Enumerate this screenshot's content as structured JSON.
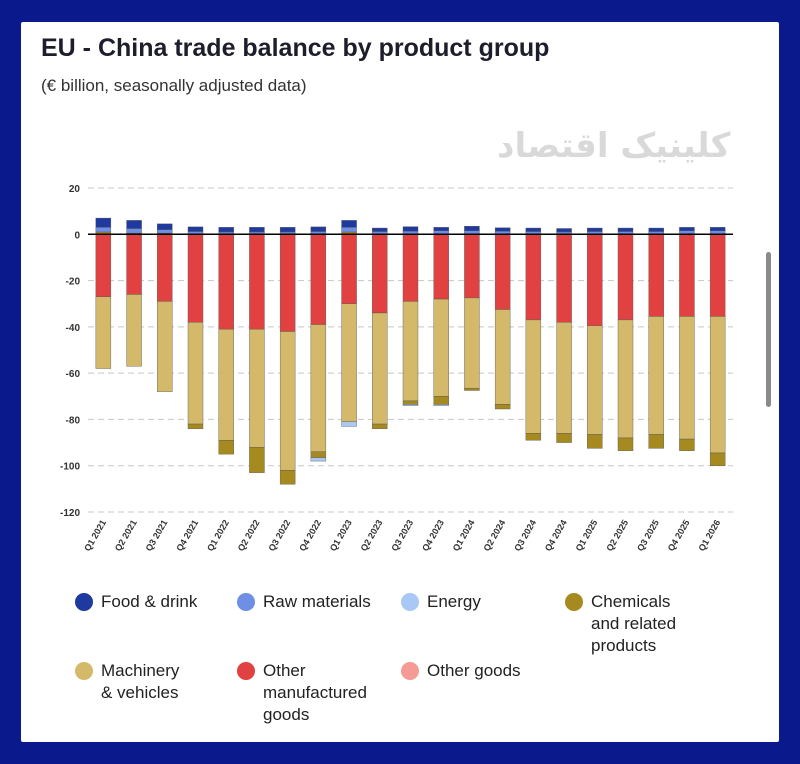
{
  "chart_data": {
    "type": "bar",
    "stacked": true,
    "title": "EU - China trade balance by product group",
    "subtitle": "(€ billion, seasonally adjusted data)",
    "ylim": [
      -120,
      20
    ],
    "yticks": [
      20,
      0,
      -20,
      -40,
      -60,
      -80,
      -100,
      -120
    ],
    "grid": true,
    "legend_position": "bottom",
    "categories": [
      "Q1 2021",
      "Q2 2021",
      "Q3 2021",
      "Q4 2021",
      "Q1 2022",
      "Q2 2022",
      "Q3 2022",
      "Q4 2022",
      "Q1 2023",
      "Q2 2023",
      "Q3 2023",
      "Q4 2023",
      "Q1 2024",
      "Q2 2024",
      "Q3 2024",
      "Q4 2024",
      "Q1 2025",
      "Q2 2025",
      "Q3 2025",
      "Q4 2025",
      "Q1 2026"
    ],
    "series": [
      {
        "name": "Food & drink",
        "color": "#1f3a9e",
        "values": [
          4,
          3.5,
          2.5,
          2,
          2,
          2,
          2,
          2,
          3,
          1.5,
          2,
          1.5,
          2,
          1.5,
          1.5,
          1.5,
          1.5,
          1.5,
          1.5,
          1.5,
          1.5
        ]
      },
      {
        "name": "Raw materials",
        "color": "#6f8fe6",
        "values": [
          2,
          2,
          1.5,
          1.2,
          1,
          1,
          1,
          1.2,
          2,
          1.2,
          1.3,
          1.5,
          1.5,
          1.3,
          1.2,
          1,
          1.2,
          1.2,
          1.2,
          1.5,
          1.5
        ]
      },
      {
        "name": "Energy",
        "color": "#a9c8f5",
        "values": [
          0,
          0,
          0,
          0,
          0,
          0,
          0,
          -1.5,
          -2,
          0,
          -0.5,
          -0.5,
          0,
          0,
          0,
          0,
          0,
          0,
          0,
          0,
          0
        ]
      },
      {
        "name": "Chemicals and related products",
        "color": "#a78a1f",
        "values": [
          1,
          0.5,
          0.5,
          -2,
          -6,
          -11,
          -6,
          -2.5,
          1,
          -2,
          -1.5,
          -3.5,
          -1,
          -2,
          -3,
          -4,
          -6,
          -5.5,
          -6,
          -5,
          -5.5
        ]
      },
      {
        "name": "Machinery & vehicles",
        "color": "#d4b96a",
        "values": [
          -31,
          -31,
          -39,
          -44,
          -48,
          -51,
          -60,
          -55,
          -51,
          -48,
          -43,
          -42,
          -39,
          -41,
          -49,
          -48,
          -47,
          -51,
          -51,
          -53,
          -59
        ]
      },
      {
        "name": "Other manufactured goods",
        "color": "#e24141",
        "values": [
          -27,
          -26,
          -29,
          -38,
          -41,
          -41,
          -42,
          -39,
          -30,
          -34,
          -29,
          -28,
          -27.5,
          -32.5,
          -37,
          -38,
          -39.5,
          -37,
          -35.5,
          -35.5,
          -35.5
        ]
      },
      {
        "name": "Other goods",
        "color": "#f59a94",
        "values": [
          0,
          0,
          0,
          0,
          0,
          0,
          0,
          0,
          0,
          0,
          0,
          0,
          0,
          0,
          0,
          0,
          0,
          0,
          0,
          0,
          0
        ]
      }
    ]
  },
  "watermark": "کلینیک اقتصاد",
  "legend": [
    {
      "label": "Food & drink",
      "color": "#1f3a9e"
    },
    {
      "label": "Raw materials",
      "color": "#6f8fe6"
    },
    {
      "label": "Energy",
      "color": "#a9c8f5"
    },
    {
      "label": "Chemicals\nand related\nproducts",
      "color": "#a78a1f"
    },
    {
      "label": "Machinery\n& vehicles",
      "color": "#d4b96a"
    },
    {
      "label": "Other\nmanufactured\ngoods",
      "color": "#e24141"
    },
    {
      "label": "Other goods",
      "color": "#f59a94"
    }
  ]
}
